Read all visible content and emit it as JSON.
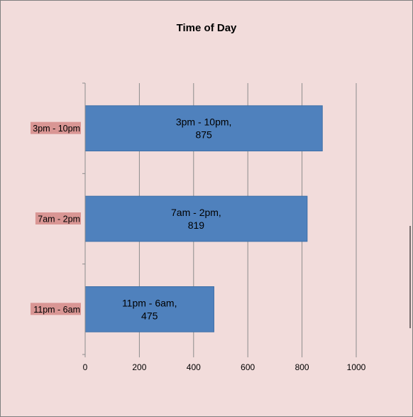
{
  "colors": {
    "background": "#f2dcdb",
    "bar": "#4f81bd",
    "bar_border": "#3c6fa8",
    "gridline": "#8c8c8c",
    "category_label_highlight": "#d99694",
    "text": "#000000"
  },
  "chart_data": {
    "type": "bar",
    "orientation": "horizontal",
    "title": "Time of Day",
    "xlabel": "",
    "ylabel": "",
    "categories": [
      "3pm - 10pm",
      "7am - 2pm",
      "11pm - 6am"
    ],
    "values": [
      875,
      819,
      475
    ],
    "data_labels": [
      [
        "3pm - 10pm,",
        "875"
      ],
      [
        "7am - 2pm,",
        "819"
      ],
      [
        "11pm - 6am,",
        "475"
      ]
    ],
    "xlim": [
      0,
      1000
    ],
    "x_ticks": [
      0,
      200,
      400,
      600,
      800,
      1000
    ],
    "x_tick_labels": [
      "0",
      "200",
      "400",
      "600",
      "800",
      "1000"
    ],
    "grid": true,
    "legend": "none"
  }
}
